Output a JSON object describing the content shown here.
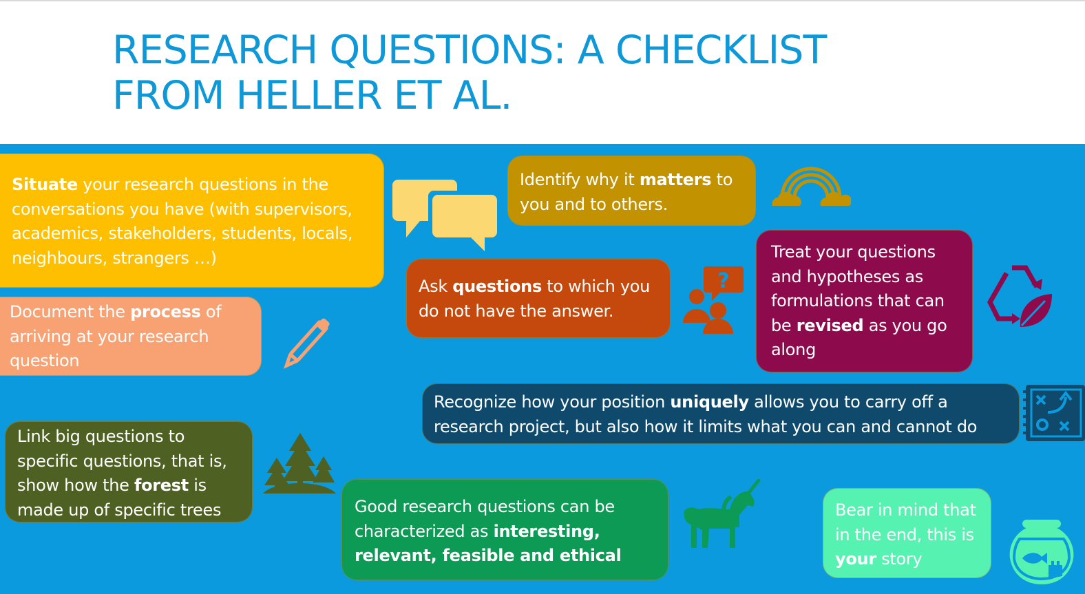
{
  "slide": {
    "title_line1": "RESEARCH QUESTIONS: A CHECKLIST",
    "title_line2": "FROM HELLER ET AL."
  },
  "colors": {
    "title": "#0f98d8",
    "background_panel": "#0b9ade",
    "situate": "#fdbf00",
    "process": "#f8a274",
    "link": "#4e6122",
    "matters": "#c29200",
    "questions": "#c5490d",
    "treat": "#8d0b4c",
    "recognize": "#0f4a6d",
    "good": "#0c9a55",
    "bear": "#56f2b2"
  },
  "boxes": {
    "situate": {
      "bold": "Situate",
      "rest": " your research questions in the conversations you have (with supervisors, academics, stakeholders, students, locals, neighbours, strangers …)"
    },
    "process": {
      "pre": "Document the ",
      "bold": "process",
      "post": " of arriving at your research question"
    },
    "link": {
      "pre": "Link big questions to specific questions, that is, show how the ",
      "bold": "forest",
      "post": " is made up of specific trees"
    },
    "matters": {
      "pre": "Identify why it ",
      "bold": "matters",
      "post": " to you and to others."
    },
    "questions": {
      "pre": "Ask ",
      "bold": "questions",
      "post": " to which you do not have the answer."
    },
    "treat": {
      "pre": "Treat your questions and hypotheses as formulations that can be ",
      "bold": "revised",
      "post": " as you go along"
    },
    "recognize": {
      "pre": "Recognize how your position ",
      "bold": "uniquely",
      "post": " allows you to carry off a research project, but also how it limits what you can and cannot do"
    },
    "good": {
      "pre": "Good research questions can be characterized as ",
      "bold": "interesting, relevant, feasible and ethical",
      "post": ""
    },
    "bear": {
      "pre": "Bear in mind that in the end, this is ",
      "bold": "your",
      "post": " story"
    }
  },
  "icons": [
    "speech-bubbles-icon",
    "rainbow-icon",
    "pencil-icon",
    "people-question-icon",
    "recycle-leaf-icon",
    "strategy-board-icon",
    "trees-icon",
    "unicorn-icon",
    "fishbowl-icon"
  ]
}
